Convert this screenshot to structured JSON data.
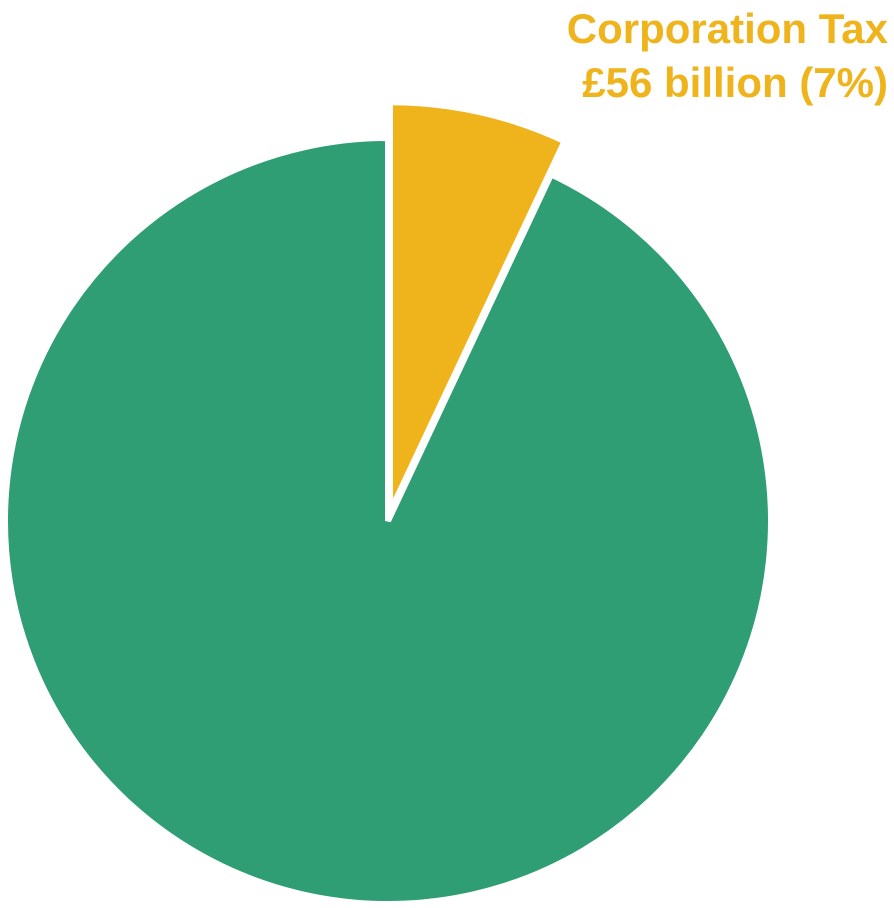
{
  "chart_data": {
    "type": "pie",
    "title": "",
    "slices": [
      {
        "label": "Corporation Tax",
        "value_text": "£56 billion (7%)",
        "value": 56,
        "percent": 7,
        "color": "#EFB31B",
        "exploded": true
      },
      {
        "label": "",
        "percent": 93,
        "color": "#2F9E74",
        "exploded": false
      }
    ],
    "start_angle": "12 o'clock",
    "direction": "clockwise",
    "legend": "none",
    "annotation": {
      "line1": "Corporation Tax",
      "line2": "£56 billion (7%)"
    }
  }
}
